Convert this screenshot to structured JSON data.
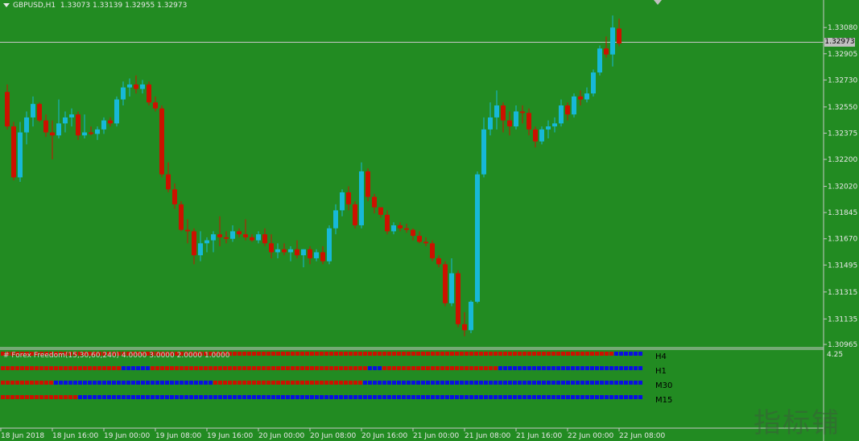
{
  "header": {
    "symbol": "GBPUSD,H1",
    "ohlc": "1.33073 1.33139 1.32955 1.32973"
  },
  "current_price": "1.32973",
  "indicator": {
    "title": "# Forex Freedom(15,30,60,240) 4.0000 3.0000 2.0000 1.0000",
    "scale": "4.25",
    "rows": [
      {
        "label": "H4",
        "segments": [
          [
            "r",
            127
          ],
          [
            "b",
            6
          ]
        ]
      },
      {
        "label": "H1",
        "segments": [
          [
            "r",
            25
          ],
          [
            "b",
            6
          ],
          [
            "r",
            45
          ],
          [
            "b",
            3
          ],
          [
            "r",
            24
          ],
          [
            "b",
            30
          ]
        ]
      },
      {
        "label": "M30",
        "segments": [
          [
            "r",
            11
          ],
          [
            "b",
            33
          ],
          [
            "r",
            31
          ],
          [
            "b",
            58
          ]
        ]
      },
      {
        "label": "M15",
        "segments": [
          [
            "r",
            16
          ],
          [
            "b",
            117
          ]
        ]
      }
    ],
    "colors": {
      "red": "#cc1100",
      "blue": "#0a10e0"
    }
  },
  "colors": {
    "background": "#228b22",
    "bull": "#17b8d8",
    "bear": "#cc1100",
    "grid_line": "#c8c8c8",
    "text": "#e8e8e8"
  },
  "watermark": "指标铺",
  "chart_data": {
    "type": "candlestick",
    "symbol": "GBPUSD",
    "timeframe": "H1",
    "y_ticks": [
      "1.33080",
      "1.32905",
      "1.32730",
      "1.32550",
      "1.32375",
      "1.32200",
      "1.32020",
      "1.31845",
      "1.31670",
      "1.31495",
      "1.31315",
      "1.31135",
      "1.30965"
    ],
    "x_ticks": [
      "18 Jun 2018",
      "18 Jun 16:00",
      "19 Jun 00:00",
      "19 Jun 08:00",
      "19 Jun 16:00",
      "20 Jun 00:00",
      "20 Jun 08:00",
      "20 Jun 16:00",
      "21 Jun 00:00",
      "21 Jun 08:00",
      "21 Jun 16:00",
      "22 Jun 00:00",
      "22 Jun 08:00"
    ],
    "ylim": [
      1.30965,
      1.3321
    ],
    "ohlc": [
      [
        1.3265,
        1.327,
        1.324,
        1.3242
      ],
      [
        1.3242,
        1.3245,
        1.3206,
        1.3208
      ],
      [
        1.3208,
        1.3245,
        1.3205,
        1.3238
      ],
      [
        1.3238,
        1.3252,
        1.323,
        1.3248
      ],
      [
        1.3248,
        1.3262,
        1.3242,
        1.3257
      ],
      [
        1.3257,
        1.3258,
        1.3245,
        1.3246
      ],
      [
        1.3246,
        1.325,
        1.3235,
        1.3238
      ],
      [
        1.3238,
        1.3246,
        1.322,
        1.3236
      ],
      [
        1.3236,
        1.326,
        1.3234,
        1.3244
      ],
      [
        1.3244,
        1.3252,
        1.3238,
        1.3248
      ],
      [
        1.3248,
        1.3254,
        1.3242,
        1.325
      ],
      [
        1.325,
        1.3252,
        1.3233,
        1.3236
      ],
      [
        1.3236,
        1.325,
        1.3234,
        1.3238
      ],
      [
        1.3238,
        1.3242,
        1.3236,
        1.3237
      ],
      [
        1.3237,
        1.3242,
        1.3233,
        1.324
      ],
      [
        1.324,
        1.3248,
        1.3237,
        1.3246
      ],
      [
        1.3246,
        1.3248,
        1.3242,
        1.3244
      ],
      [
        1.3244,
        1.3262,
        1.3242,
        1.326
      ],
      [
        1.326,
        1.3272,
        1.3256,
        1.3268
      ],
      [
        1.3268,
        1.3274,
        1.3262,
        1.327
      ],
      [
        1.327,
        1.3276,
        1.3264,
        1.3267
      ],
      [
        1.3267,
        1.3273,
        1.3264,
        1.327
      ],
      [
        1.327,
        1.3272,
        1.3256,
        1.3258
      ],
      [
        1.3258,
        1.3262,
        1.3252,
        1.3254
      ],
      [
        1.3254,
        1.3256,
        1.3208,
        1.321
      ],
      [
        1.321,
        1.3218,
        1.3198,
        1.32
      ],
      [
        1.32,
        1.3204,
        1.3187,
        1.319
      ],
      [
        1.319,
        1.3192,
        1.3172,
        1.3173
      ],
      [
        1.3173,
        1.318,
        1.3164,
        1.3172
      ],
      [
        1.3172,
        1.3174,
        1.315,
        1.3156
      ],
      [
        1.3156,
        1.3172,
        1.3152,
        1.3164
      ],
      [
        1.3164,
        1.3168,
        1.3158,
        1.3166
      ],
      [
        1.3166,
        1.3172,
        1.3158,
        1.317
      ],
      [
        1.317,
        1.3182,
        1.3162,
        1.3168
      ],
      [
        1.3168,
        1.3172,
        1.3164,
        1.3167
      ],
      [
        1.3167,
        1.3176,
        1.3165,
        1.3172
      ],
      [
        1.3172,
        1.3174,
        1.3168,
        1.317
      ],
      [
        1.317,
        1.318,
        1.3166,
        1.3168
      ],
      [
        1.3168,
        1.317,
        1.3165,
        1.3166
      ],
      [
        1.3166,
        1.3172,
        1.3164,
        1.317
      ],
      [
        1.317,
        1.3174,
        1.3162,
        1.3164
      ],
      [
        1.3164,
        1.317,
        1.3154,
        1.3158
      ],
      [
        1.3158,
        1.3164,
        1.3154,
        1.316
      ],
      [
        1.316,
        1.3164,
        1.3156,
        1.3158
      ],
      [
        1.3158,
        1.3162,
        1.3152,
        1.316
      ],
      [
        1.316,
        1.3166,
        1.3154,
        1.3156
      ],
      [
        1.3156,
        1.316,
        1.3148,
        1.316
      ],
      [
        1.316,
        1.3162,
        1.315,
        1.3154
      ],
      [
        1.3154,
        1.316,
        1.3152,
        1.3158
      ],
      [
        1.3158,
        1.3162,
        1.315,
        1.3152
      ],
      [
        1.3152,
        1.3176,
        1.315,
        1.3174
      ],
      [
        1.3174,
        1.319,
        1.317,
        1.3186
      ],
      [
        1.3186,
        1.32,
        1.3182,
        1.3198
      ],
      [
        1.3198,
        1.3202,
        1.3186,
        1.319
      ],
      [
        1.319,
        1.3192,
        1.3174,
        1.3176
      ],
      [
        1.3176,
        1.3218,
        1.3174,
        1.3212
      ],
      [
        1.3212,
        1.3214,
        1.3192,
        1.3195
      ],
      [
        1.3195,
        1.3197,
        1.3184,
        1.3188
      ],
      [
        1.3188,
        1.3188,
        1.3181,
        1.3183
      ],
      [
        1.3183,
        1.3186,
        1.317,
        1.3172
      ],
      [
        1.3172,
        1.3178,
        1.317,
        1.3176
      ],
      [
        1.3176,
        1.3178,
        1.3172,
        1.3174
      ],
      [
        1.3174,
        1.3177,
        1.3171,
        1.3173
      ],
      [
        1.3173,
        1.3174,
        1.3166,
        1.3169
      ],
      [
        1.3169,
        1.3172,
        1.3164,
        1.3165
      ],
      [
        1.3165,
        1.3168,
        1.3162,
        1.3164
      ],
      [
        1.3164,
        1.3166,
        1.3152,
        1.3154
      ],
      [
        1.3154,
        1.3156,
        1.3148,
        1.315
      ],
      [
        1.315,
        1.3152,
        1.3122,
        1.3124
      ],
      [
        1.3124,
        1.3154,
        1.3122,
        1.3144
      ],
      [
        1.3144,
        1.3146,
        1.3108,
        1.311
      ],
      [
        1.311,
        1.3118,
        1.3102,
        1.3106
      ],
      [
        1.3106,
        1.3126,
        1.3104,
        1.3125
      ],
      [
        1.3125,
        1.3212,
        1.3124,
        1.321
      ],
      [
        1.321,
        1.3248,
        1.3208,
        1.324
      ],
      [
        1.324,
        1.3258,
        1.3236,
        1.3248
      ],
      [
        1.3248,
        1.3266,
        1.324,
        1.3256
      ],
      [
        1.3256,
        1.3258,
        1.3238,
        1.3246
      ],
      [
        1.3246,
        1.3252,
        1.3236,
        1.3242
      ],
      [
        1.3242,
        1.3256,
        1.324,
        1.3252
      ],
      [
        1.3252,
        1.3256,
        1.3244,
        1.3251
      ],
      [
        1.3251,
        1.3254,
        1.3236,
        1.324
      ],
      [
        1.324,
        1.3242,
        1.3228,
        1.3232
      ],
      [
        1.3232,
        1.3242,
        1.323,
        1.324
      ],
      [
        1.324,
        1.3246,
        1.3234,
        1.3242
      ],
      [
        1.3242,
        1.3248,
        1.3238,
        1.3244
      ],
      [
        1.3244,
        1.326,
        1.3242,
        1.3256
      ],
      [
        1.3256,
        1.3258,
        1.3246,
        1.325
      ],
      [
        1.325,
        1.3264,
        1.3248,
        1.3262
      ],
      [
        1.3262,
        1.3266,
        1.3256,
        1.326
      ],
      [
        1.326,
        1.3268,
        1.3258,
        1.3264
      ],
      [
        1.3264,
        1.328,
        1.3262,
        1.3278
      ],
      [
        1.3278,
        1.3296,
        1.3276,
        1.3294
      ],
      [
        1.3294,
        1.3302,
        1.3288,
        1.329
      ],
      [
        1.329,
        1.3316,
        1.3282,
        1.3308
      ],
      [
        1.33073,
        1.33139,
        1.32955,
        1.32973
      ]
    ]
  }
}
